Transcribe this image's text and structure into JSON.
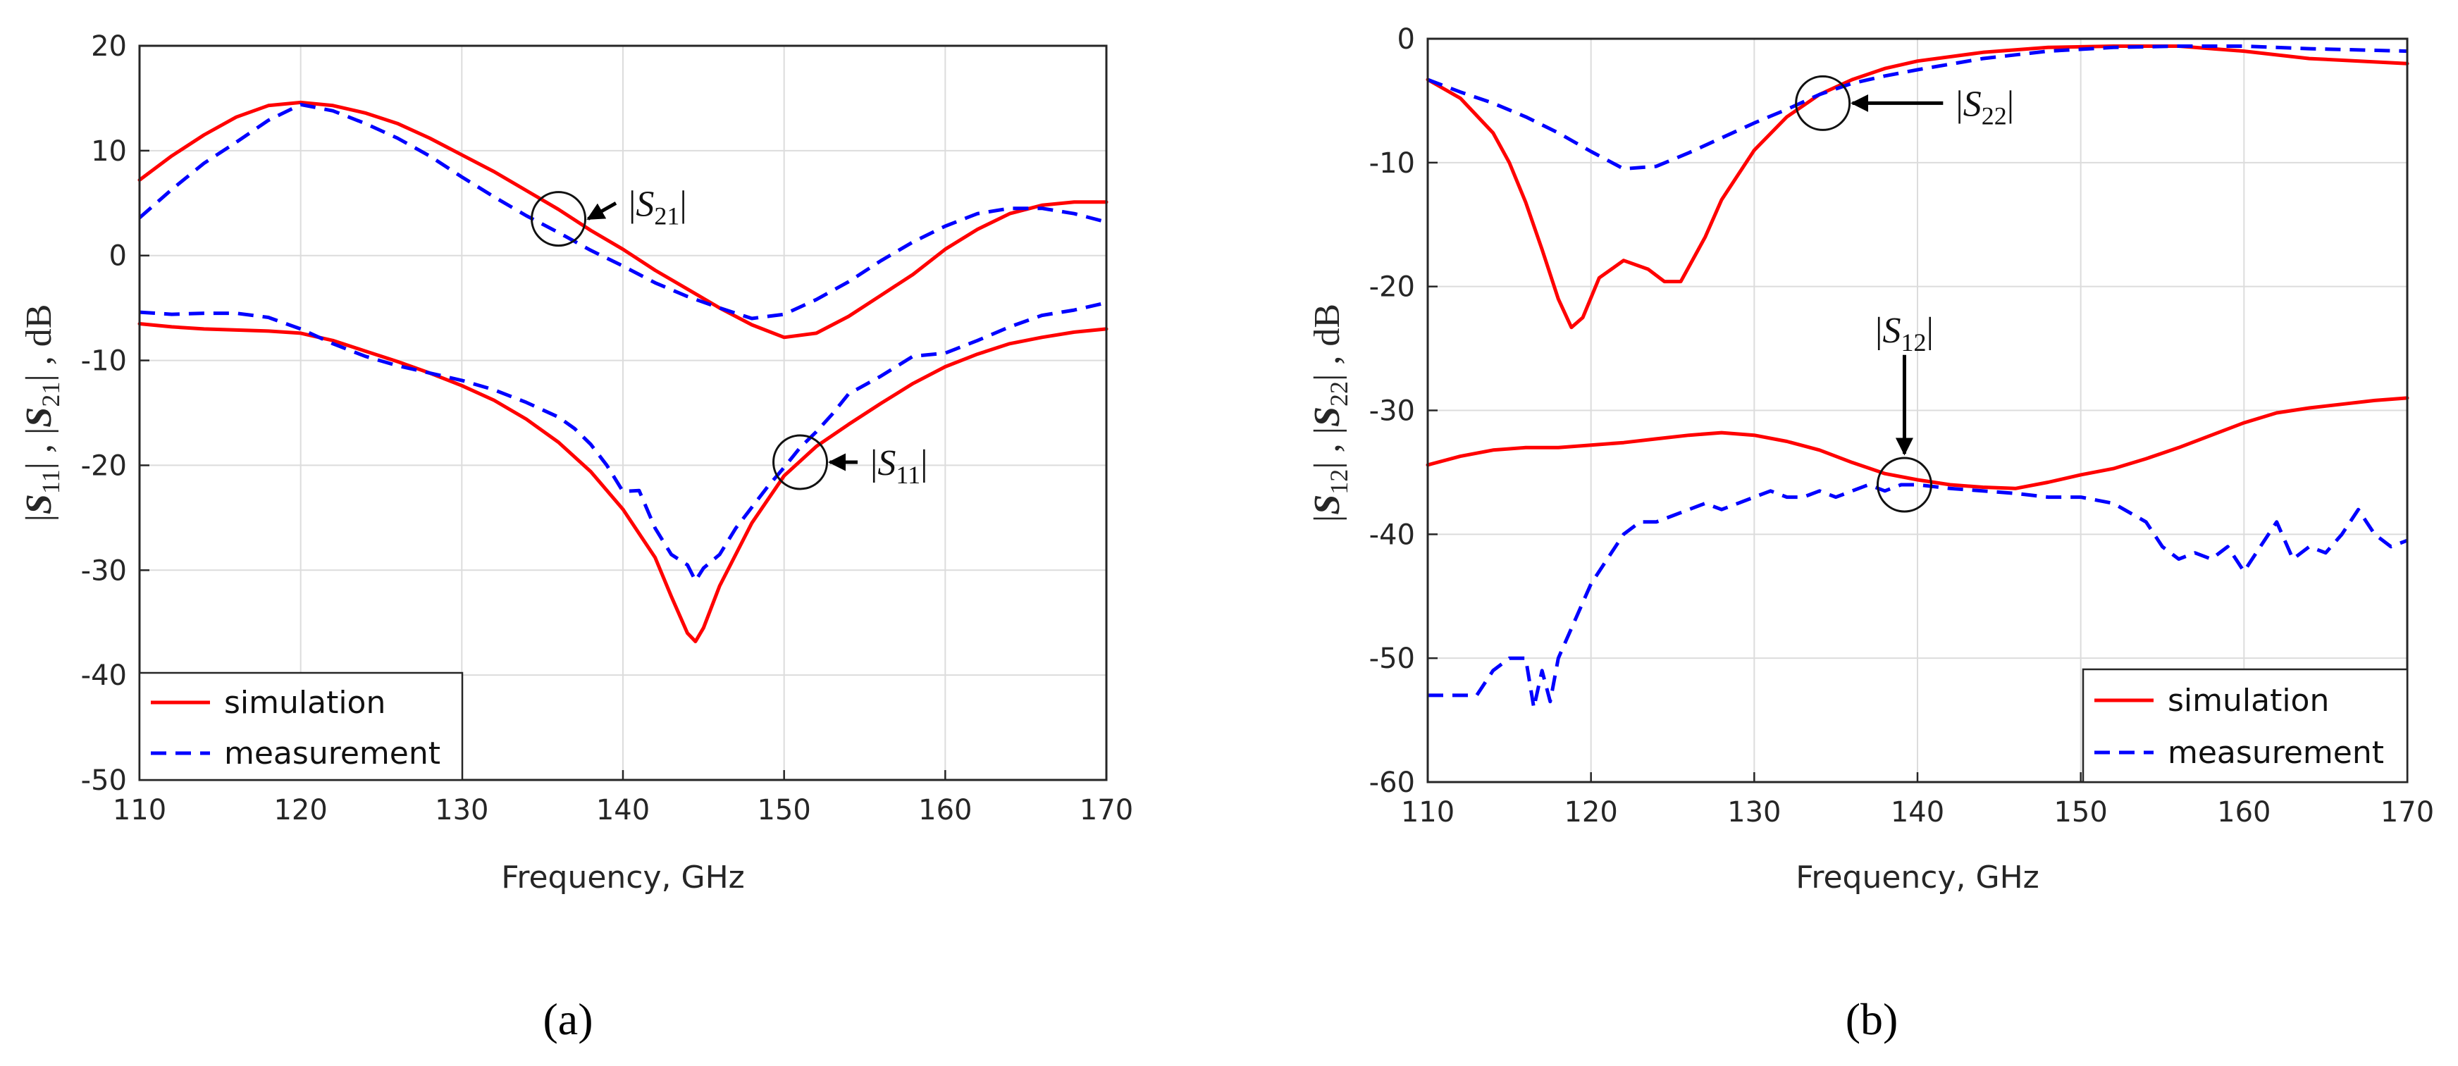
{
  "chart_data": [
    {
      "type": "line",
      "panel_label": "(a)",
      "xlabel": "Frequency, GHz",
      "ylabel": "|S11| ,  |S21| ,  dB",
      "xlim": [
        110,
        170
      ],
      "ylim": [
        -50,
        20
      ],
      "xticks": [
        110,
        120,
        130,
        140,
        150,
        160,
        170
      ],
      "yticks": [
        -50,
        -40,
        -30,
        -20,
        -10,
        0,
        10,
        20
      ],
      "grid": true,
      "legend": {
        "position": "bottom-left",
        "entries": [
          "simulation",
          "measurement"
        ]
      },
      "series": [
        {
          "name": "simulation",
          "param": "S21",
          "style": "solid",
          "color": "#ff0000",
          "x": [
            110,
            112,
            114,
            116,
            118,
            120,
            122,
            124,
            126,
            128,
            130,
            132,
            134,
            136,
            138,
            140,
            142,
            144,
            146,
            148,
            150,
            152,
            154,
            156,
            158,
            160,
            162,
            164,
            166,
            168,
            170
          ],
          "y": [
            7.2,
            9.5,
            11.5,
            13.2,
            14.3,
            14.6,
            14.3,
            13.6,
            12.6,
            11.2,
            9.6,
            8,
            6.2,
            4.4,
            2.4,
            0.6,
            -1.4,
            -3.2,
            -5,
            -6.6,
            -7.8,
            -7.4,
            -5.8,
            -3.8,
            -1.8,
            0.6,
            2.5,
            4,
            4.8,
            5.1,
            5.1
          ]
        },
        {
          "name": "measurement",
          "param": "S21",
          "style": "dashed",
          "color": "#0000ff",
          "x": [
            110,
            112,
            114,
            116,
            118,
            120,
            122,
            124,
            126,
            128,
            130,
            132,
            134,
            136,
            138,
            140,
            142,
            144,
            146,
            148,
            150,
            152,
            154,
            156,
            158,
            160,
            162,
            164,
            166,
            168,
            170
          ],
          "y": [
            3.6,
            6.3,
            8.8,
            10.8,
            12.9,
            14.4,
            13.8,
            12.6,
            11.2,
            9.5,
            7.5,
            5.6,
            3.8,
            2.2,
            0.5,
            -1,
            -2.6,
            -3.9,
            -5,
            -6,
            -5.6,
            -4.2,
            -2.5,
            -0.5,
            1.3,
            2.8,
            4,
            4.5,
            4.5,
            4,
            3.2
          ]
        },
        {
          "name": "simulation",
          "param": "S11",
          "style": "solid",
          "color": "#ff0000",
          "x": [
            110,
            112,
            114,
            116,
            118,
            120,
            122,
            124,
            126,
            128,
            130,
            132,
            134,
            136,
            138,
            140,
            142,
            143,
            144,
            144.5,
            145,
            146,
            148,
            150,
            152,
            154,
            156,
            158,
            160,
            162,
            164,
            166,
            168,
            170
          ],
          "y": [
            -6.5,
            -6.8,
            -7,
            -7.1,
            -7.2,
            -7.4,
            -8.1,
            -9.1,
            -10.1,
            -11.2,
            -12.4,
            -13.8,
            -15.6,
            -17.8,
            -20.6,
            -24.2,
            -28.8,
            -32.5,
            -36,
            -36.8,
            -35.5,
            -31.5,
            -25.5,
            -21,
            -18.2,
            -16.1,
            -14.1,
            -12.2,
            -10.6,
            -9.4,
            -8.4,
            -7.8,
            -7.3,
            -7
          ]
        },
        {
          "name": "measurement",
          "param": "S11",
          "style": "dashed",
          "color": "#0000ff",
          "x": [
            110,
            112,
            114,
            116,
            118,
            120,
            122,
            124,
            126,
            128,
            130,
            132,
            134,
            136,
            137,
            138,
            139,
            140,
            141,
            142,
            143,
            144,
            144.5,
            145,
            146,
            147,
            148,
            149,
            150,
            151,
            152,
            153,
            154,
            156,
            158,
            160,
            162,
            164,
            166,
            168,
            170
          ],
          "y": [
            -5.4,
            -5.6,
            -5.5,
            -5.5,
            -5.9,
            -7,
            -8.4,
            -9.6,
            -10.5,
            -11.2,
            -11.9,
            -12.8,
            -14,
            -15.4,
            -16.5,
            -18,
            -20,
            -22.5,
            -22.4,
            -26,
            -28.5,
            -29.5,
            -31,
            -29.8,
            -28.5,
            -26,
            -24,
            -22,
            -20.2,
            -18.3,
            -16.8,
            -15.1,
            -13.2,
            -11.5,
            -9.6,
            -9.3,
            -8.1,
            -6.8,
            -5.7,
            -5.2,
            -4.5
          ]
        }
      ],
      "annotations": [
        {
          "text": "|S21|",
          "base": "S",
          "sub": "21",
          "circle_at": [
            136,
            3.5
          ],
          "label_at": [
            140,
            5
          ]
        },
        {
          "text": "|S11|",
          "base": "S",
          "sub": "11",
          "circle_at": [
            151,
            -19.7
          ],
          "label_at": [
            155,
            -19.7
          ]
        }
      ]
    },
    {
      "type": "line",
      "panel_label": "(b)",
      "xlabel": "Frequency, GHz",
      "ylabel": "|S12| ,  |S22| ,  dB",
      "xlim": [
        110,
        170
      ],
      "ylim": [
        -60,
        0
      ],
      "xticks": [
        110,
        120,
        130,
        140,
        150,
        160,
        170
      ],
      "yticks": [
        -60,
        -50,
        -40,
        -30,
        -20,
        -10,
        0
      ],
      "grid": true,
      "legend": {
        "position": "bottom-right",
        "entries": [
          "simulation",
          "measurement"
        ]
      },
      "series": [
        {
          "name": "simulation",
          "param": "S22",
          "style": "solid",
          "color": "#ff0000",
          "x": [
            110,
            112,
            114,
            115,
            116,
            117,
            118,
            118.8,
            119.5,
            120.5,
            122,
            123.5,
            124.5,
            125.5,
            127,
            128,
            130,
            132,
            134,
            136,
            138,
            140,
            144,
            148,
            152,
            156,
            160,
            164,
            170
          ],
          "y": [
            -3.3,
            -4.8,
            -7.6,
            -10,
            -13.2,
            -17,
            -21,
            -23.3,
            -22.5,
            -19.3,
            -17.9,
            -18.6,
            -19.6,
            -19.6,
            -16,
            -13,
            -9,
            -6.3,
            -4.5,
            -3.3,
            -2.4,
            -1.8,
            -1.1,
            -0.7,
            -0.6,
            -0.6,
            -1,
            -1.6,
            -2
          ]
        },
        {
          "name": "measurement",
          "param": "S22",
          "style": "dashed",
          "color": "#0000ff",
          "x": [
            110,
            112,
            114,
            116,
            118,
            120,
            122,
            124,
            126,
            128,
            130,
            132,
            134,
            136,
            138,
            140,
            144,
            148,
            152,
            156,
            160,
            164,
            170
          ],
          "y": [
            -3.3,
            -4.3,
            -5.2,
            -6.3,
            -7.6,
            -9.1,
            -10.5,
            -10.3,
            -9.2,
            -8,
            -6.8,
            -5.7,
            -4.5,
            -3.6,
            -3,
            -2.5,
            -1.6,
            -1,
            -0.7,
            -0.6,
            -0.6,
            -0.8,
            -1
          ]
        },
        {
          "name": "simulation",
          "param": "S12",
          "style": "solid",
          "color": "#ff0000",
          "x": [
            110,
            112,
            114,
            116,
            118,
            120,
            122,
            124,
            126,
            128,
            130,
            132,
            134,
            136,
            138,
            140,
            142,
            144,
            146,
            148,
            150,
            152,
            154,
            156,
            158,
            160,
            162,
            164,
            166,
            168,
            170
          ],
          "y": [
            -34.4,
            -33.7,
            -33.2,
            -33,
            -33,
            -32.8,
            -32.6,
            -32.3,
            -32,
            -31.8,
            -32,
            -32.5,
            -33.2,
            -34.2,
            -35.1,
            -35.6,
            -36,
            -36.2,
            -36.3,
            -35.8,
            -35.2,
            -34.7,
            -33.9,
            -33,
            -32,
            -31,
            -30.2,
            -29.8,
            -29.5,
            -29.2,
            -29
          ]
        },
        {
          "name": "measurement",
          "param": "S12",
          "style": "dashed",
          "color": "#0000ff",
          "x": [
            110,
            112,
            113,
            114,
            115,
            116,
            116.5,
            117,
            117.5,
            118,
            119,
            120,
            121,
            122,
            123,
            124,
            125,
            126,
            127,
            128,
            129,
            130,
            131,
            132,
            133,
            134,
            135,
            136,
            137,
            138,
            139,
            140,
            142,
            144,
            146,
            148,
            150,
            152,
            154,
            155,
            156,
            157,
            158,
            159,
            160,
            161,
            162,
            163,
            164,
            165,
            166,
            167,
            168,
            169,
            170
          ],
          "y": [
            -53,
            -53,
            -53,
            -51,
            -50,
            -50,
            -54,
            -51,
            -53.5,
            -50,
            -47,
            -44,
            -42,
            -40,
            -39,
            -39,
            -38.5,
            -38,
            -37.5,
            -38,
            -37.5,
            -37,
            -36.5,
            -37,
            -37,
            -36.5,
            -37,
            -36.5,
            -36,
            -36.5,
            -36,
            -36,
            -36.3,
            -36.5,
            -36.7,
            -37,
            -37,
            -37.5,
            -39,
            -41,
            -42,
            -41.5,
            -42,
            -41,
            -43,
            -41,
            -39,
            -42,
            -41,
            -41.5,
            -40,
            -38,
            -40,
            -41,
            -40.5
          ]
        }
      ],
      "annotations": [
        {
          "text": "|S22|",
          "base": "S",
          "sub": "22",
          "circle_at": [
            134.2,
            -5.2
          ],
          "label_at": [
            142,
            -5.2
          ]
        },
        {
          "text": "|S12|",
          "base": "S",
          "sub": "12",
          "circle_at": [
            139.2,
            -36
          ],
          "label_at": [
            139.2,
            -24.5
          ]
        }
      ]
    }
  ]
}
